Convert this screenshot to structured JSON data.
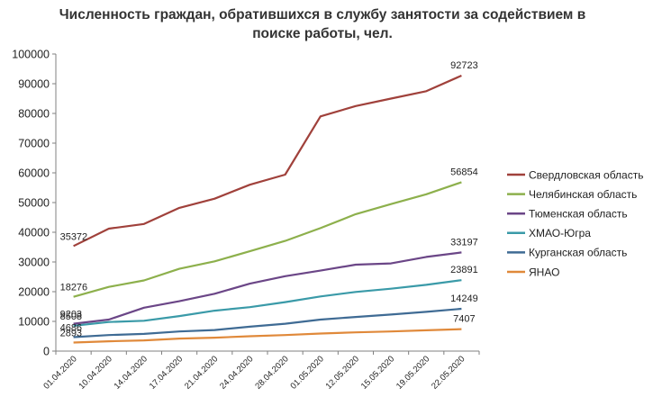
{
  "chart_data": {
    "type": "line",
    "title_lines": [
      "Численность граждан, обратившихся в службу занятости за содействием в",
      "поиске работы, чел."
    ],
    "x": [
      "01.04.2020",
      "10.04.2020",
      "14.04.2020",
      "17.04.2020",
      "21.04.2020",
      "24.04.2020",
      "28.04.2020",
      "01.05.2020",
      "12.05.2020",
      "15.05.2020",
      "19.05.2020",
      "22.05.2020"
    ],
    "ylim": [
      0,
      100000
    ],
    "yticks": [
      0,
      10000,
      20000,
      30000,
      40000,
      50000,
      60000,
      70000,
      80000,
      90000,
      100000
    ],
    "grid": false,
    "legend_position": "right",
    "series": [
      {
        "name": "Свердловская область",
        "color": "#a0413b",
        "values": [
          35372,
          41200,
          42800,
          48200,
          51300,
          56000,
          59400,
          79000,
          82500,
          85000,
          87500,
          92723
        ],
        "labels": [
          "35372",
          "",
          "",
          "",
          "",
          "",
          "",
          "",
          "",
          "",
          "",
          "92723"
        ]
      },
      {
        "name": "Челябинская область",
        "color": "#8db04c",
        "values": [
          18276,
          21600,
          23800,
          27700,
          30200,
          33600,
          37100,
          41400,
          46100,
          49500,
          52800,
          56854
        ],
        "labels": [
          "18276",
          "",
          "",
          "",
          "",
          "",
          "",
          "",
          "",
          "",
          "",
          "56854"
        ]
      },
      {
        "name": "Тюменская область",
        "color": "#6b4687",
        "values": [
          9203,
          10600,
          14600,
          16800,
          19300,
          22700,
          25200,
          27100,
          29100,
          29500,
          31700,
          33197
        ],
        "labels": [
          "9203",
          "",
          "",
          "",
          "",
          "",
          "",
          "",
          "",
          "",
          "",
          "33197"
        ]
      },
      {
        "name": "ХМАО-Югра",
        "color": "#3a9aa8",
        "values": [
          8508,
          9800,
          10200,
          11800,
          13600,
          14800,
          16500,
          18400,
          19900,
          21000,
          22300,
          23891
        ],
        "labels": [
          "8508",
          "",
          "",
          "",
          "",
          "",
          "",
          "",
          "",
          "",
          "",
          "23891"
        ]
      },
      {
        "name": "Курганская область",
        "color": "#3f6b94",
        "values": [
          4686,
          5400,
          5800,
          6600,
          7100,
          8200,
          9200,
          10600,
          11500,
          12300,
          13200,
          14249
        ],
        "labels": [
          "4686",
          "",
          "",
          "",
          "",
          "",
          "",
          "",
          "",
          "",
          "",
          "14249"
        ]
      },
      {
        "name": "ЯНАО",
        "color": "#e0893a",
        "values": [
          2893,
          3300,
          3600,
          4200,
          4500,
          5000,
          5400,
          5900,
          6300,
          6600,
          7000,
          7407
        ],
        "labels": [
          "2893",
          "",
          "",
          "",
          "",
          "",
          "",
          "",
          "",
          "",
          "",
          "7407"
        ]
      }
    ]
  }
}
